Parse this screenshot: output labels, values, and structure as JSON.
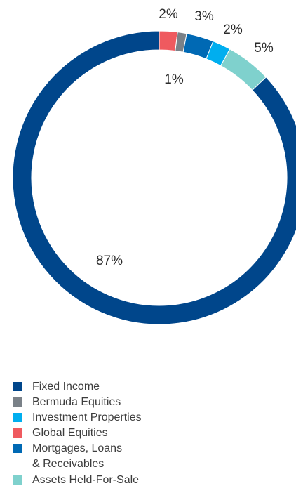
{
  "chart_data": {
    "type": "pie",
    "style": "donut",
    "title": "",
    "categories": [
      "Fixed Income",
      "Bermuda Equities",
      "Investment Properties",
      "Global Equities",
      "Mortgages, Loans & Receivables",
      "Assets Held-For-Sale"
    ],
    "values": [
      87,
      1,
      2,
      2,
      3,
      5
    ],
    "value_labels": [
      "87%",
      "1%",
      "2%",
      "2%",
      "3%",
      "5%"
    ],
    "colors": [
      "#00468b",
      "#7a8188",
      "#00aeef",
      "#ef5a5f",
      "#0069b4",
      "#7fd1cd"
    ],
    "legend": {
      "position": "bottom-left",
      "items": [
        {
          "line1": "Fixed Income",
          "line2": "",
          "color": "#00468b"
        },
        {
          "line1": "Bermuda Equities",
          "line2": "",
          "color": "#7a8188"
        },
        {
          "line1": "Investment Properties",
          "line2": "",
          "color": "#00aeef"
        },
        {
          "line1": "Global Equities",
          "line2": "",
          "color": "#ef5a5f"
        },
        {
          "line1": "Mortgages, Loans",
          "line2": "& Receivables",
          "color": "#0069b4"
        },
        {
          "line1": "Assets Held-For-Sale",
          "line2": "",
          "color": "#7fd1cd"
        }
      ]
    }
  }
}
